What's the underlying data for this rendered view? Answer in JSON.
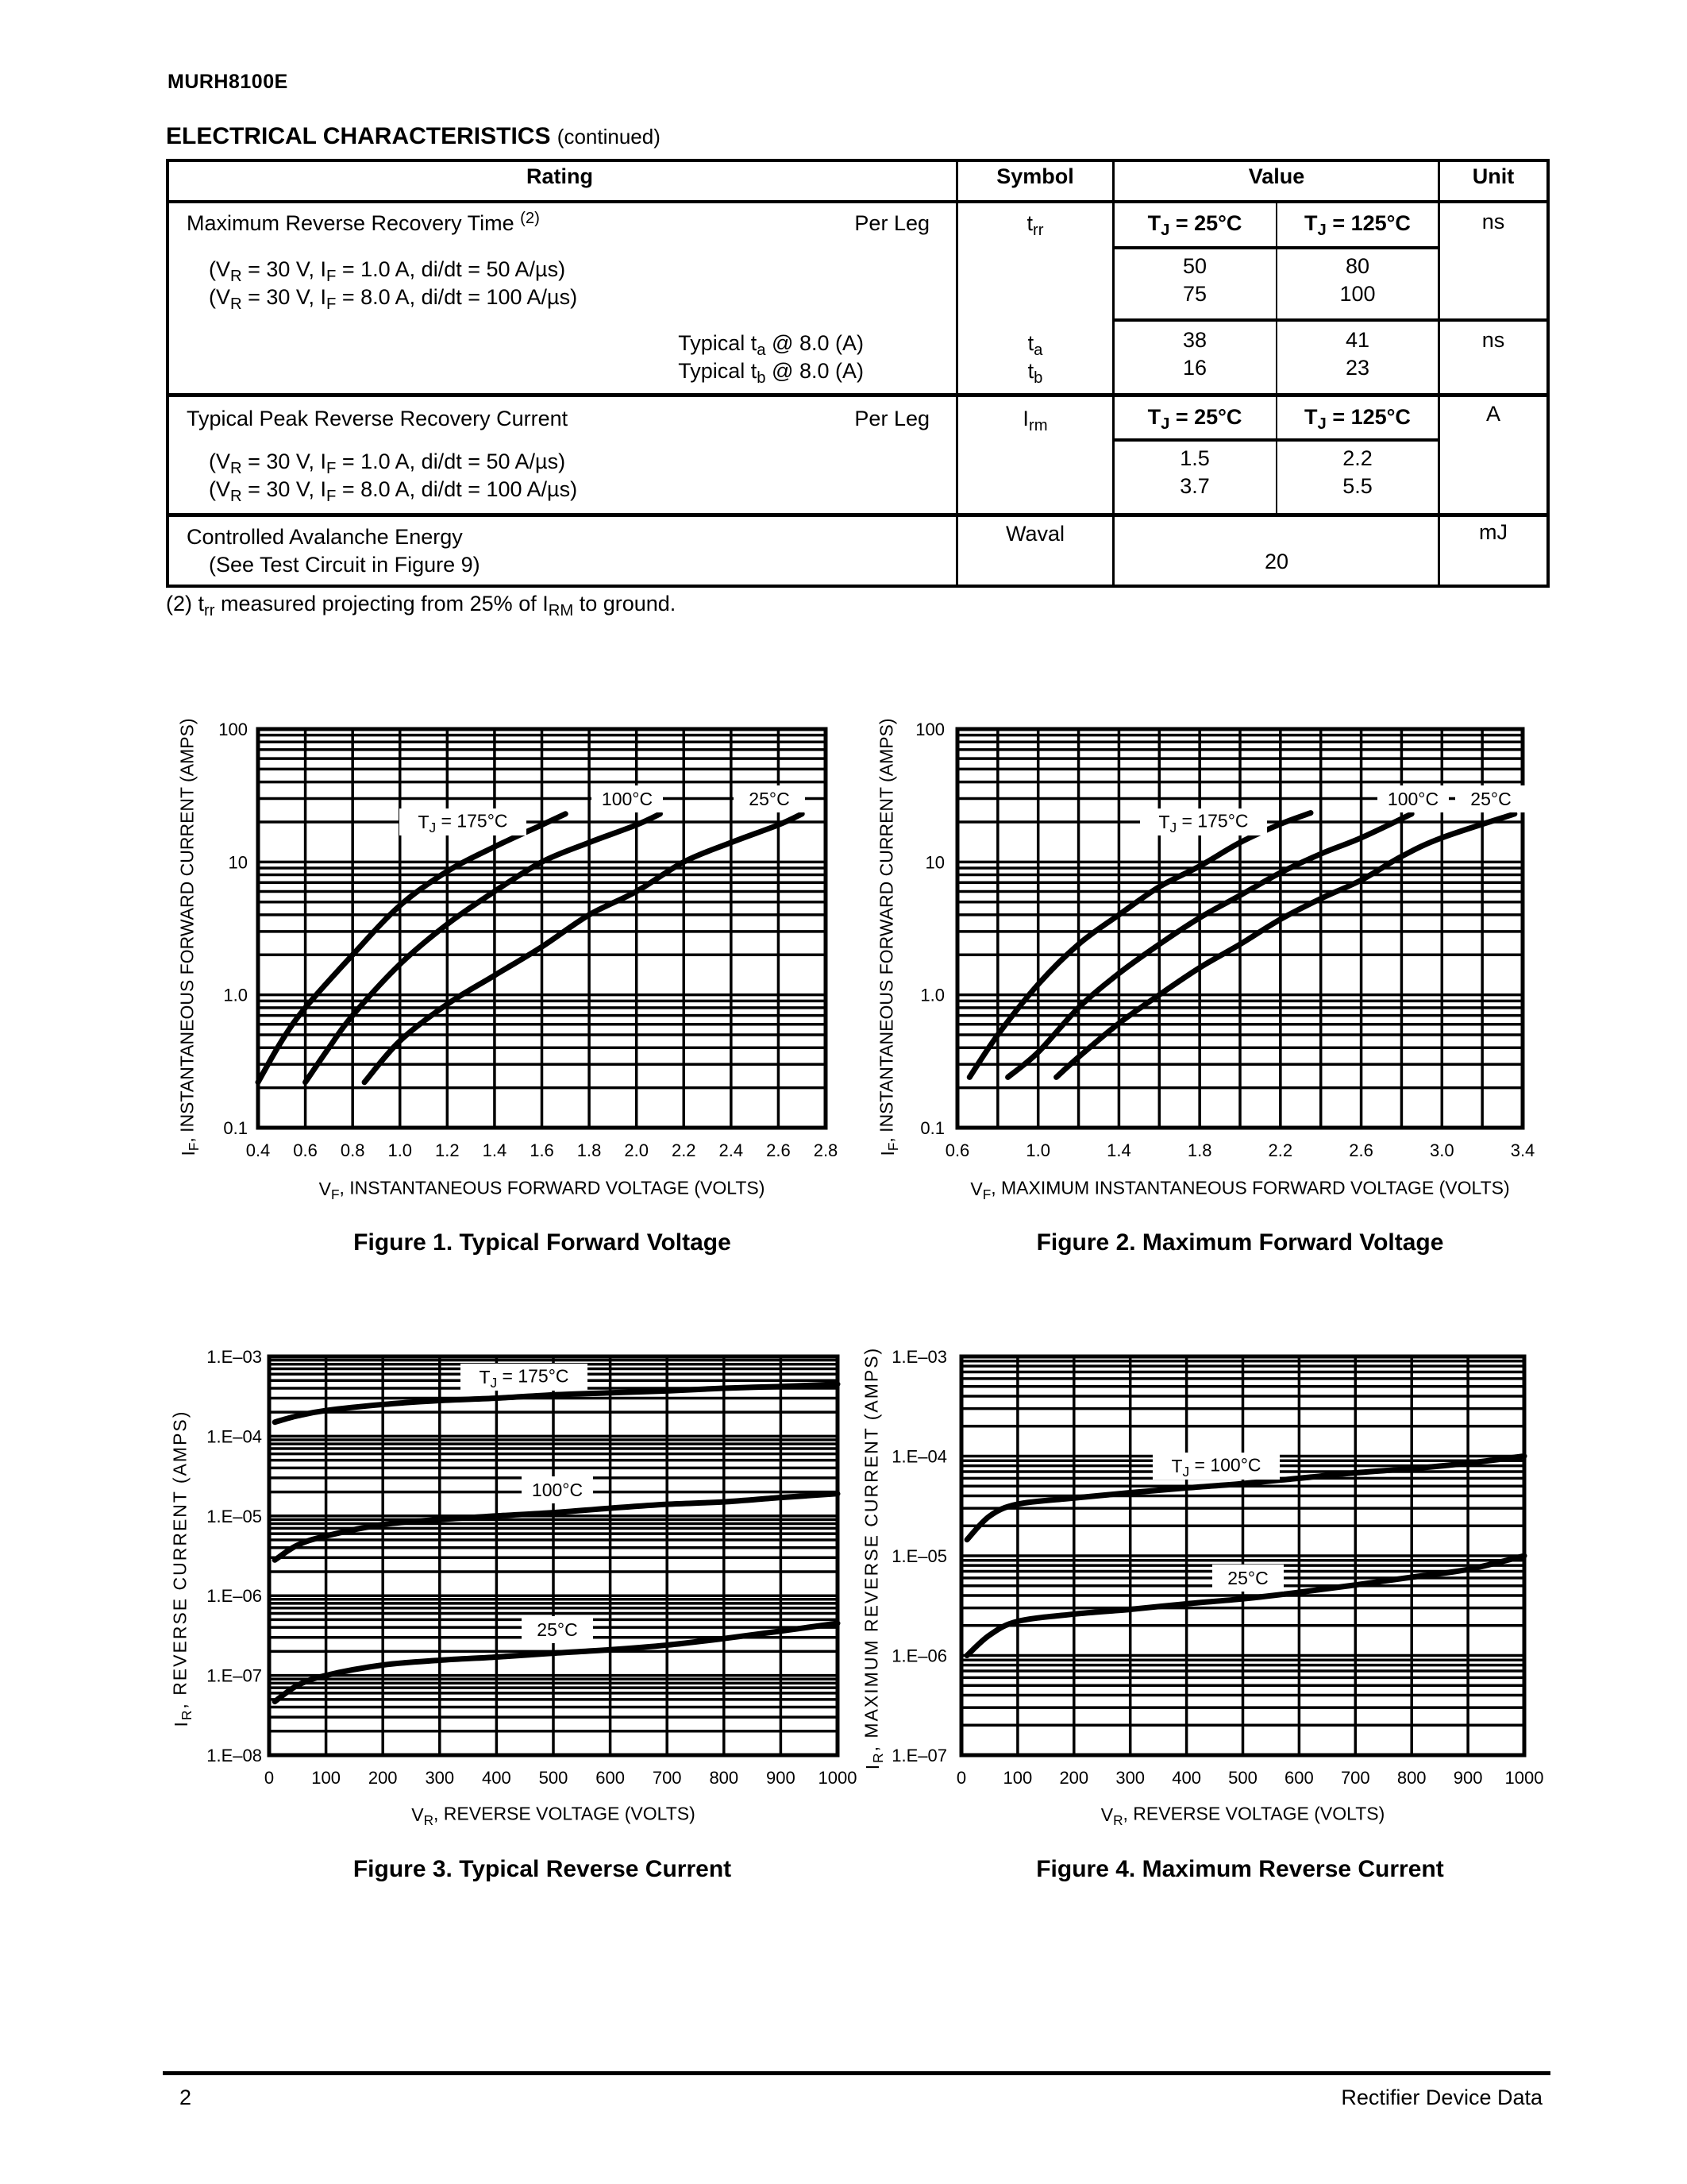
{
  "header": {
    "part_number": "MURH8100E",
    "section_title": "ELECTRICAL CHARACTERISTICS",
    "section_note": "(continued)"
  },
  "table": {
    "headers": {
      "rating": "Rating",
      "symbol": "Symbol",
      "value": "Value",
      "unit": "Unit"
    },
    "trr": {
      "rating": [
        "Maximum Reverse Recovery Time ",
        {
          "sup": "(2)"
        }
      ],
      "per_leg": "Per Leg",
      "conditions": [
        [
          "(V",
          {
            "sub": "R"
          },
          " = 30 V, I",
          {
            "sub": "F"
          },
          " = 1.0 A, di/dt = 50 A/µs)"
        ],
        [
          "(V",
          {
            "sub": "R"
          },
          " = 30 V, I",
          {
            "sub": "F"
          },
          " = 8.0 A, di/dt = 100 A/µs)"
        ]
      ],
      "symbol": [
        "t",
        {
          "sub": "rr"
        }
      ],
      "tj_headers": [
        [
          "T",
          {
            "sub": "J"
          },
          " = 25°C"
        ],
        [
          "T",
          {
            "sub": "J"
          },
          " = 125°C"
        ]
      ],
      "values_25": [
        "50",
        "75"
      ],
      "values_125": [
        "80",
        "100"
      ],
      "unit": "ns"
    },
    "ta_tb": {
      "labels": [
        [
          "Typical t",
          {
            "sub": "a"
          },
          " @ 8.0 (A)"
        ],
        [
          "Typical t",
          {
            "sub": "b"
          },
          " @ 8.0 (A)"
        ]
      ],
      "symbols": [
        [
          "t",
          {
            "sub": "a"
          }
        ],
        [
          "t",
          {
            "sub": "b"
          }
        ]
      ],
      "values_25": [
        "38",
        "16"
      ],
      "values_125": [
        "41",
        "23"
      ],
      "unit": "ns"
    },
    "irm": {
      "rating": "Typical Peak Reverse Recovery Current",
      "per_leg": "Per Leg",
      "conditions": [
        [
          "(V",
          {
            "sub": "R"
          },
          " = 30 V, I",
          {
            "sub": "F"
          },
          " = 1.0 A, di/dt = 50 A/µs)"
        ],
        [
          "(V",
          {
            "sub": "R"
          },
          " = 30 V, I",
          {
            "sub": "F"
          },
          " = 8.0 A, di/dt = 100 A/µs)"
        ]
      ],
      "symbol": [
        "I",
        {
          "sub": "rm"
        }
      ],
      "tj_headers": [
        [
          "T",
          {
            "sub": "J"
          },
          " = 25°C"
        ],
        [
          "T",
          {
            "sub": "J"
          },
          " = 125°C"
        ]
      ],
      "values_25": [
        "1.5",
        "3.7"
      ],
      "values_125": [
        "2.2",
        "5.5"
      ],
      "unit": "A"
    },
    "waval": {
      "rating": "Controlled Avalanche Energy",
      "rating_note": "(See Test Circuit in Figure 9)",
      "symbol": "Waval",
      "value": "20",
      "unit": "mJ"
    }
  },
  "footnote": [
    "(2) t",
    {
      "sub": "rr"
    },
    " measured projecting from 25% of I",
    {
      "sub": "RM"
    },
    " to ground."
  ],
  "chart_data": [
    {
      "type": "line",
      "title": "Figure 1. Typical Forward Voltage",
      "xlabel": [
        "V",
        {
          "sub": "F"
        },
        ", INSTANTANEOUS FORWARD VOLTAGE (VOLTS)"
      ],
      "ylabel": [
        "I",
        {
          "sub": "F"
        },
        ", INSTANTANEOUS FORWARD CURRENT (AMPS)"
      ],
      "xlim": [
        0.4,
        2.8
      ],
      "ylim": [
        0.1,
        100
      ],
      "yscale": "log",
      "grid": true,
      "xticks": [
        0.4,
        0.6,
        0.8,
        1.0,
        1.2,
        1.4,
        1.6,
        1.8,
        2.0,
        2.2,
        2.4,
        2.6,
        2.8
      ],
      "xtick_labels": [
        "0.4",
        "0.6",
        "0.8",
        "1.0",
        "1.2",
        "1.4",
        "1.6",
        "1.8",
        "2.0",
        "2.2",
        "2.4",
        "2.6",
        "2.8"
      ],
      "yticks": [
        0.1,
        1,
        10,
        100
      ],
      "ytick_labels": [
        "0.1",
        "1.0",
        "10",
        "100"
      ],
      "series": [
        {
          "name": [
            "T",
            {
              "sub": "J"
            },
            " = 175°C"
          ],
          "x": [
            0.4,
            0.5,
            0.6,
            0.8,
            1.0,
            1.2,
            1.4,
            1.6,
            1.7
          ],
          "y": [
            0.22,
            0.45,
            0.8,
            2.0,
            4.7,
            8.5,
            13,
            19,
            23
          ]
        },
        {
          "name": [
            "100°C"
          ],
          "x": [
            0.6,
            0.7,
            0.8,
            1.0,
            1.2,
            1.4,
            1.6,
            1.8,
            2.0,
            2.1
          ],
          "y": [
            0.22,
            0.4,
            0.7,
            1.7,
            3.4,
            6,
            10,
            14,
            19,
            23
          ]
        },
        {
          "name": [
            "25°C"
          ],
          "x": [
            0.85,
            1.0,
            1.2,
            1.4,
            1.6,
            1.8,
            2.0,
            2.2,
            2.4,
            2.6,
            2.7
          ],
          "y": [
            0.22,
            0.45,
            0.85,
            1.4,
            2.3,
            4,
            6,
            10,
            14,
            19,
            23
          ]
        }
      ]
    },
    {
      "type": "line",
      "title": "Figure 2. Maximum Forward Voltage",
      "xlabel": [
        "V",
        {
          "sub": "F"
        },
        ", MAXIMUM INSTANTANEOUS FORWARD VOLTAGE (VOLTS)"
      ],
      "ylabel": [
        "I",
        {
          "sub": "F"
        },
        ", INSTANTANEOUS FORWARD CURRENT (AMPS)"
      ],
      "xlim": [
        0.6,
        3.4
      ],
      "ylim": [
        0.1,
        100
      ],
      "yscale": "log",
      "grid": true,
      "xticks": [
        0.6,
        1.0,
        1.4,
        1.8,
        2.2,
        2.6,
        3.0,
        3.4
      ],
      "xtick_labels": [
        "0.6",
        "1.0",
        "1.4",
        "1.8",
        "2.2",
        "2.6",
        "3.0",
        "3.4"
      ],
      "yticks": [
        0.1,
        1,
        10,
        100
      ],
      "ytick_labels": [
        "0.1",
        "1.0",
        "10",
        "100"
      ],
      "series": [
        {
          "name": [
            "T",
            {
              "sub": "J"
            },
            " = 175°C"
          ],
          "x": [
            0.66,
            0.8,
            1.0,
            1.2,
            1.4,
            1.6,
            1.8,
            2.0,
            2.2,
            2.35
          ],
          "y": [
            0.24,
            0.5,
            1.2,
            2.4,
            4.0,
            6.5,
            9.3,
            14,
            19.3,
            23.4
          ]
        },
        {
          "name": [
            "100°C"
          ],
          "x": [
            0.85,
            1.0,
            1.2,
            1.4,
            1.6,
            1.8,
            2.0,
            2.2,
            2.4,
            2.6,
            2.85
          ],
          "y": [
            0.24,
            0.37,
            0.8,
            1.45,
            2.4,
            3.8,
            5.6,
            8.3,
            11.5,
            15.2,
            23
          ]
        },
        {
          "name": [
            "25°C"
          ],
          "x": [
            1.09,
            1.2,
            1.4,
            1.6,
            1.8,
            2.0,
            2.2,
            2.4,
            2.6,
            2.8,
            3.0,
            3.36
          ],
          "y": [
            0.24,
            0.34,
            0.61,
            1.0,
            1.6,
            2.4,
            3.7,
            5.3,
            7.3,
            11,
            15.2,
            23
          ]
        }
      ]
    },
    {
      "type": "line",
      "title": "Figure 3. Typical Reverse Current",
      "xlabel": [
        "V",
        {
          "sub": "R"
        },
        ", REVERSE VOLTAGE (VOLTS)"
      ],
      "ylabel": [
        "I",
        {
          "sub": "R"
        },
        ", REVERSE CURRENT (AMPS)"
      ],
      "xlim": [
        0,
        1000
      ],
      "ylim": [
        1e-08,
        0.001
      ],
      "yscale": "log",
      "grid": true,
      "xticks": [
        0,
        100,
        200,
        300,
        400,
        500,
        600,
        700,
        800,
        900,
        1000
      ],
      "xtick_labels": [
        "0",
        "100",
        "200",
        "300",
        "400",
        "500",
        "600",
        "700",
        "800",
        "900",
        "1000"
      ],
      "yticks": [
        1e-08,
        1e-07,
        1e-06,
        1e-05,
        0.0001,
        0.001
      ],
      "ytick_labels": [
        "1.E–08",
        "1.E–07",
        "1.E–06",
        "1.E–05",
        "1.E–04",
        "1.E–03"
      ],
      "series": [
        {
          "name": [
            "T",
            {
              "sub": "J"
            },
            " = 175°C"
          ],
          "x": [
            10,
            50,
            100,
            200,
            300,
            400,
            500,
            600,
            700,
            800,
            900,
            1000
          ],
          "y": [
            0.00015,
            0.00018,
            0.00021,
            0.00025,
            0.00028,
            0.0003,
            0.00033,
            0.00035,
            0.00037,
            0.0004,
            0.00042,
            0.00045
          ]
        },
        {
          "name": [
            "100°C"
          ],
          "x": [
            10,
            50,
            100,
            200,
            300,
            400,
            500,
            600,
            700,
            800,
            900,
            1000
          ],
          "y": [
            2.8e-06,
            4.3e-06,
            5.6e-06,
            7.8e-06,
            9e-06,
            1e-05,
            1.1e-05,
            1.25e-05,
            1.4e-05,
            1.5e-05,
            1.7e-05,
            1.9e-05
          ]
        },
        {
          "name": [
            "25°C"
          ],
          "x": [
            10,
            50,
            100,
            200,
            300,
            400,
            500,
            600,
            700,
            800,
            900,
            1000
          ],
          "y": [
            4.7e-08,
            7.5e-08,
            1e-07,
            1.35e-07,
            1.55e-07,
            1.7e-07,
            1.9e-07,
            2.1e-07,
            2.4e-07,
            2.9e-07,
            3.6e-07,
            4.5e-07
          ]
        }
      ]
    },
    {
      "type": "line",
      "title": "Figure 4. Maximum Reverse Current",
      "xlabel": [
        "V",
        {
          "sub": "R"
        },
        ", REVERSE VOLTAGE (VOLTS)"
      ],
      "ylabel": [
        "I",
        {
          "sub": "R"
        },
        ", MAXIMUM REVERSE CURRENT (AMPS)"
      ],
      "xlim": [
        0,
        1000
      ],
      "ylim": [
        1e-07,
        0.001
      ],
      "yscale": "log",
      "grid": true,
      "xticks": [
        0,
        100,
        200,
        300,
        400,
        500,
        600,
        700,
        800,
        900,
        1000
      ],
      "xtick_labels": [
        "0",
        "100",
        "200",
        "300",
        "400",
        "500",
        "600",
        "700",
        "800",
        "900",
        "1000"
      ],
      "yticks": [
        1e-07,
        1e-06,
        1e-05,
        0.0001,
        0.001
      ],
      "ytick_labels": [
        "1.E–07",
        "1.E–06",
        "1.E–05",
        "1.E–04",
        "1.E–03"
      ],
      "series": [
        {
          "name": [
            "T",
            {
              "sub": "J"
            },
            " = 100°C"
          ],
          "x": [
            10,
            50,
            100,
            200,
            300,
            400,
            500,
            600,
            700,
            800,
            900,
            1000
          ],
          "y": [
            1.45e-05,
            2.5e-05,
            3.3e-05,
            3.8e-05,
            4.3e-05,
            4.8e-05,
            5.3e-05,
            6e-05,
            6.8e-05,
            7.5e-05,
            8.5e-05,
            0.0001
          ]
        },
        {
          "name": [
            "25°C"
          ],
          "x": [
            10,
            50,
            100,
            200,
            300,
            400,
            500,
            600,
            700,
            800,
            900,
            1000
          ],
          "y": [
            1e-06,
            1.6e-06,
            2.2e-06,
            2.6e-06,
            2.9e-06,
            3.3e-06,
            3.7e-06,
            4.3e-06,
            5.1e-06,
            6.1e-06,
            7.3e-06,
            1e-05
          ]
        }
      ]
    }
  ],
  "footer": {
    "page": "2",
    "title": "Rectifier Device Data"
  }
}
